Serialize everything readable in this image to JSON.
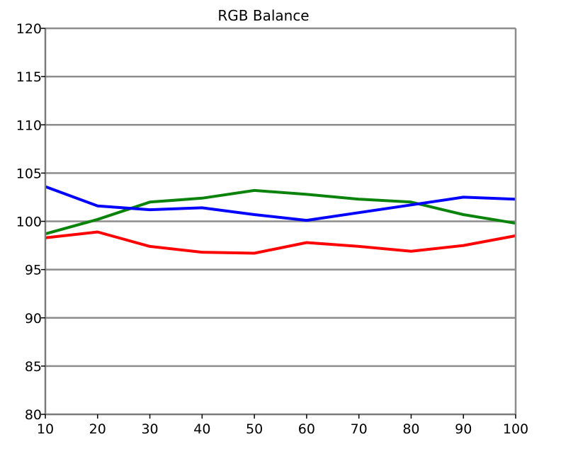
{
  "chart_data": {
    "type": "line",
    "title": "RGB Balance",
    "xlabel": "",
    "ylabel": "",
    "x": [
      10,
      20,
      30,
      40,
      50,
      60,
      70,
      80,
      90,
      100
    ],
    "xlim": [
      10,
      100
    ],
    "ylim": [
      80,
      120
    ],
    "yticks": [
      80,
      85,
      90,
      95,
      100,
      105,
      110,
      115,
      120
    ],
    "grid": "horizontal",
    "series": [
      {
        "color": "#ff0000",
        "values": [
          98.3,
          98.9,
          97.4,
          96.8,
          96.7,
          97.8,
          97.4,
          96.9,
          97.5,
          98.5
        ]
      },
      {
        "color": "#0a830a",
        "values": [
          98.7,
          100.2,
          102.0,
          102.4,
          103.2,
          102.8,
          102.3,
          102.0,
          100.7,
          99.8
        ]
      },
      {
        "color": "#0000ff",
        "values": [
          103.6,
          101.6,
          101.2,
          101.4,
          100.7,
          100.1,
          100.9,
          101.7,
          102.5,
          102.3
        ]
      }
    ]
  }
}
